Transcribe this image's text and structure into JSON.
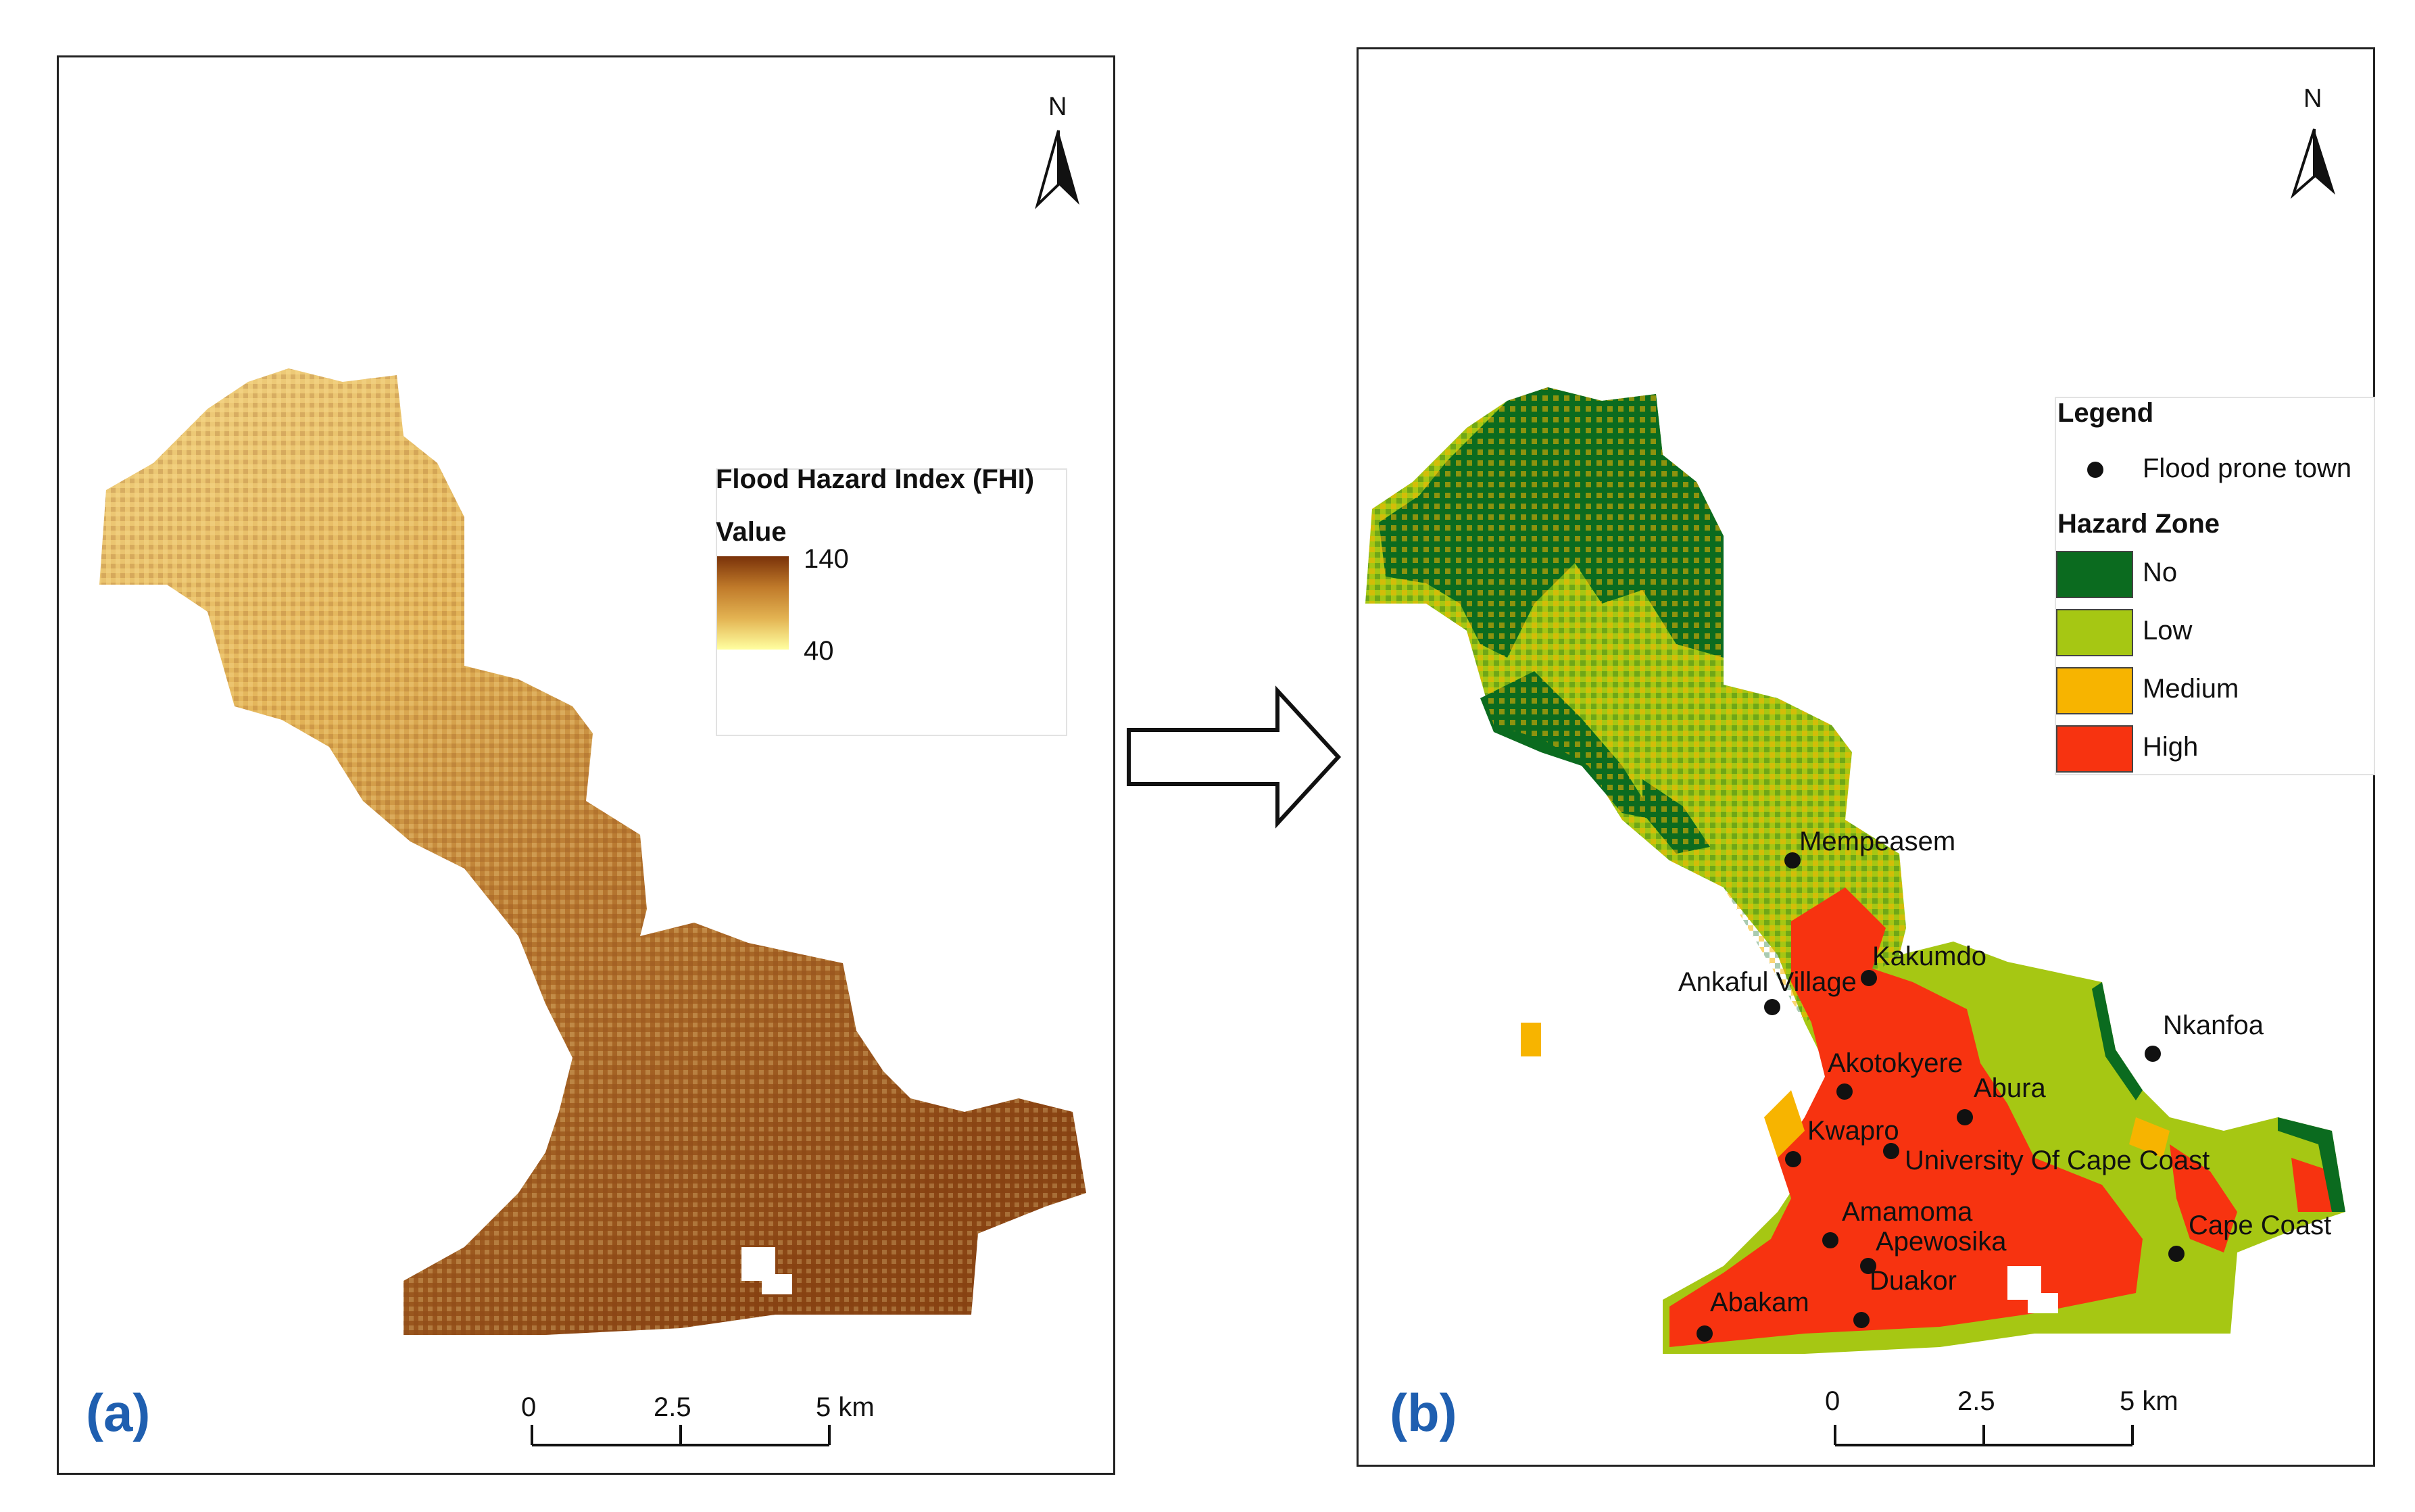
{
  "panel_a": {
    "letter": "(a)",
    "north_label": "N",
    "legend": {
      "title": "Flood Hazard Index (FHI)",
      "subtitle": "Value",
      "max_label": "140",
      "min_label": "40",
      "ramp_colors": [
        "#7a3209",
        "#c07a2a",
        "#e3b352",
        "#ffffa0"
      ]
    },
    "scale": {
      "labels": [
        "0",
        "2.5",
        "5 km"
      ]
    }
  },
  "arrow": {
    "direction": "right"
  },
  "panel_b": {
    "letter": "(b)",
    "north_label": "N",
    "legend": {
      "title": "Legend",
      "town_label": "Flood prone town",
      "zone_title": "Hazard Zone",
      "zones": [
        {
          "label": "No",
          "color": "#0b6b1f"
        },
        {
          "label": "Low",
          "color": "#a6c713"
        },
        {
          "label": "Medium",
          "color": "#f7b400"
        },
        {
          "label": "High",
          "color": "#f73310"
        }
      ]
    },
    "towns": [
      {
        "name": "Mempeasem"
      },
      {
        "name": "Kakumdo"
      },
      {
        "name": "Ankaful Village"
      },
      {
        "name": "Nkanfoa"
      },
      {
        "name": "Akotokyere"
      },
      {
        "name": "Abura"
      },
      {
        "name": "Kwapro"
      },
      {
        "name": "University Of Cape Coast"
      },
      {
        "name": "Amamoma"
      },
      {
        "name": "Apewosika"
      },
      {
        "name": "Cape Coast"
      },
      {
        "name": "Duakor"
      },
      {
        "name": "Abakam"
      }
    ],
    "scale": {
      "labels": [
        "0",
        "2.5",
        "5 km"
      ]
    }
  }
}
